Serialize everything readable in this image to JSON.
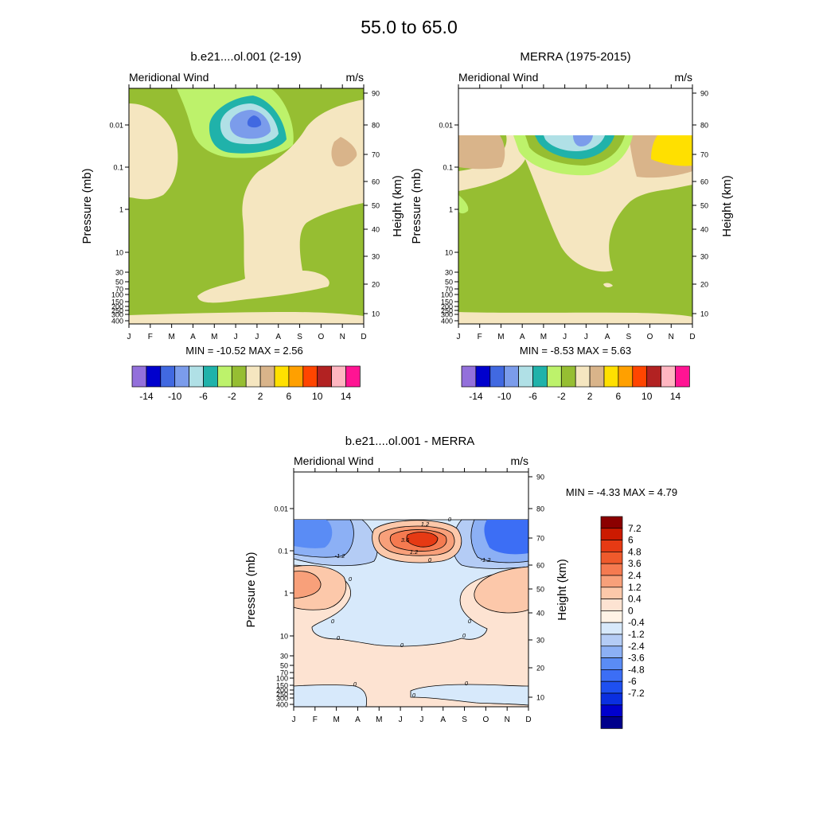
{
  "page_title": "55.0 to  65.0",
  "colors": {
    "fill_palette": [
      "#9370DB",
      "#0000CD",
      "#4169E1",
      "#7B9CEB",
      "#B0E0E6",
      "#20B2AA",
      "#BDF26B",
      "#96BE32",
      "#F5E6C0",
      "#D9B48A",
      "#FFE000",
      "#FFA000",
      "#FF4500",
      "#B22222",
      "#FFB6C1",
      "#FF1493"
    ],
    "diff_palette": [
      "#00008B",
      "#0000CD",
      "#0A2FE0",
      "#1E50F0",
      "#3C6EF5",
      "#5A8CF5",
      "#8CB0F5",
      "#B4CCF5",
      "#D7E9FB",
      "#FFF3E6",
      "#FDE3D2",
      "#FCC8AA",
      "#F8A07A",
      "#F57A50",
      "#EF5A2C",
      "#E63A14",
      "#CC1A00",
      "#8B0000"
    ],
    "white": "#FFFFFF"
  },
  "chart_data": [
    {
      "type": "heatmap",
      "title": "b.e21....ol.001 (2-19)",
      "left_label": "Meridional Wind",
      "right_label": "m/s",
      "ylabel": "Pressure (mb)",
      "ylabel_right": "Height (km)",
      "x_ticks": [
        "J",
        "F",
        "M",
        "A",
        "M",
        "J",
        "J",
        "A",
        "S",
        "O",
        "N",
        "D"
      ],
      "y_ticks": [
        "0.01",
        "0.1",
        "1",
        "10",
        "30",
        "50",
        "70",
        "100",
        "150",
        "200",
        "250",
        "300",
        "400"
      ],
      "y_ticks_right": [
        "90",
        "80",
        "70",
        "60",
        "50",
        "40",
        "30",
        "20",
        "10"
      ],
      "stats": "MIN = -10.52  MAX =   2.56",
      "min": -10.52,
      "max": 2.56,
      "colorbar_labels": [
        "-14",
        "-10",
        "-6",
        "-2",
        "2",
        "6",
        "10",
        "14"
      ],
      "colorbar_levels": [
        -16,
        -14,
        -12,
        -10,
        -8,
        -6,
        -4,
        -2,
        0,
        2,
        4,
        6,
        8,
        10,
        12,
        14,
        16
      ]
    },
    {
      "type": "heatmap",
      "title": "MERRA (1975-2015)",
      "left_label": "Meridional Wind",
      "right_label": "m/s",
      "ylabel": "Pressure (mb)",
      "ylabel_right": "Height (km)",
      "x_ticks": [
        "J",
        "F",
        "M",
        "A",
        "M",
        "J",
        "J",
        "A",
        "S",
        "O",
        "N",
        "D"
      ],
      "y_ticks": [
        "0.01",
        "0.1",
        "1",
        "10",
        "30",
        "50",
        "70",
        "100",
        "150",
        "200",
        "250",
        "300",
        "400"
      ],
      "y_ticks_right": [
        "90",
        "80",
        "70",
        "60",
        "50",
        "40",
        "30",
        "20",
        "10"
      ],
      "stats": "MIN =  -8.53  MAX =   5.63",
      "min": -8.53,
      "max": 5.63,
      "colorbar_labels": [
        "-14",
        "-10",
        "-6",
        "-2",
        "2",
        "6",
        "10",
        "14"
      ]
    },
    {
      "type": "heatmap",
      "title": "b.e21....ol.001 - MERRA",
      "left_label": "Meridional Wind",
      "right_label": "m/s",
      "ylabel": "Pressure (mb)",
      "ylabel_right": "Height (km)",
      "x_ticks": [
        "J",
        "F",
        "M",
        "A",
        "M",
        "J",
        "J",
        "A",
        "S",
        "O",
        "N",
        "D"
      ],
      "y_ticks": [
        "0.01",
        "0.1",
        "1",
        "10",
        "30",
        "50",
        "70",
        "100",
        "150",
        "200",
        "250",
        "300",
        "400"
      ],
      "y_ticks_right": [
        "90",
        "80",
        "70",
        "60",
        "50",
        "40",
        "30",
        "20",
        "10"
      ],
      "stats": "MIN =  -4.33  MAX =   4.79",
      "min": -4.33,
      "max": 4.79,
      "colorbar_labels": [
        "7.2",
        "6",
        "4.8",
        "3.6",
        "2.4",
        "1.2",
        "0.4",
        "0",
        "-0.4",
        "-1.2",
        "-2.4",
        "-3.6",
        "-4.8",
        "-6",
        "-7.2"
      ],
      "contour_labels": [
        "1.2",
        "0",
        "3.6",
        "1.2",
        "0",
        "-1.2",
        "-1.2",
        "0",
        "0",
        "0",
        "0",
        "0",
        "0",
        "0",
        "0",
        "0"
      ]
    }
  ]
}
